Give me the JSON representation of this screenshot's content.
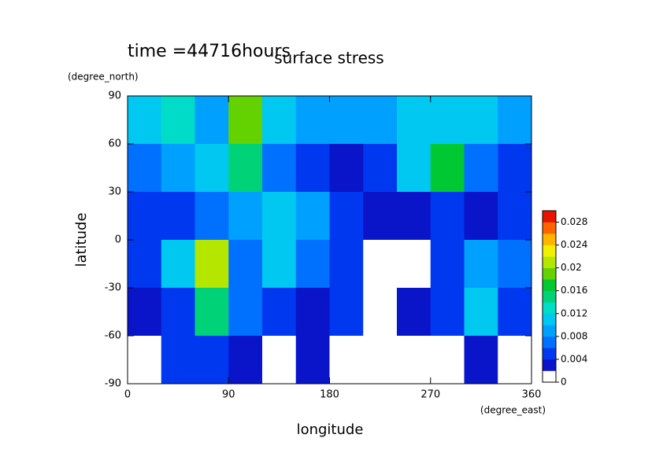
{
  "chart_data": {
    "type": "heatmap",
    "title": "surface stress",
    "subtitle": "time =44716hours",
    "x_label": "longitude",
    "x_unit": "(degree_east)",
    "y_label": "latitude",
    "y_unit": "(degree_north)",
    "x": [
      15,
      45,
      75,
      105,
      135,
      165,
      195,
      225,
      255,
      285,
      315,
      345
    ],
    "y": [
      75,
      45,
      15,
      -15,
      -45,
      -75
    ],
    "values": [
      [
        0.01,
        0.012,
        0.008,
        0.018,
        0.01,
        0.008,
        0.008,
        0.008,
        0.01,
        0.01,
        0.01,
        0.008
      ],
      [
        0.006,
        0.008,
        0.01,
        0.014,
        0.006,
        0.004,
        0.002,
        0.004,
        0.01,
        0.016,
        0.006,
        0.004
      ],
      [
        0.004,
        0.004,
        0.006,
        0.008,
        0.01,
        0.008,
        0.004,
        0.002,
        0.002,
        0.004,
        0.002,
        0.004
      ],
      [
        0.004,
        0.01,
        0.02,
        0.006,
        0.01,
        0.006,
        0.004,
        0,
        0,
        0.004,
        0.008,
        0.006
      ],
      [
        0.002,
        0.004,
        0.014,
        0.006,
        0.004,
        0.002,
        0.004,
        0,
        0.002,
        0.004,
        0.01,
        0.004
      ],
      [
        0,
        0.004,
        0.004,
        0.002,
        0,
        0.002,
        0,
        0,
        0,
        0,
        0.002,
        0
      ]
    ],
    "xlim": [
      0,
      360
    ],
    "xticks": [
      0,
      90,
      180,
      270,
      360
    ],
    "ylim": [
      -90,
      90
    ],
    "yticks": [
      -90,
      -60,
      -30,
      0,
      30,
      60,
      90
    ],
    "clim": [
      0,
      0.03
    ],
    "cticks": [
      0,
      0.004,
      0.008,
      0.012,
      0.016,
      0.02,
      0.024,
      0.028
    ],
    "colors": [
      "#ffffff",
      "#0a14c8",
      "#0038f0",
      "#0070ff",
      "#00a0ff",
      "#00c8f0",
      "#00dcc8",
      "#00d278",
      "#00c832",
      "#64d200",
      "#b4e600",
      "#f0f000",
      "#ffb400",
      "#ff6400",
      "#e61400"
    ]
  }
}
